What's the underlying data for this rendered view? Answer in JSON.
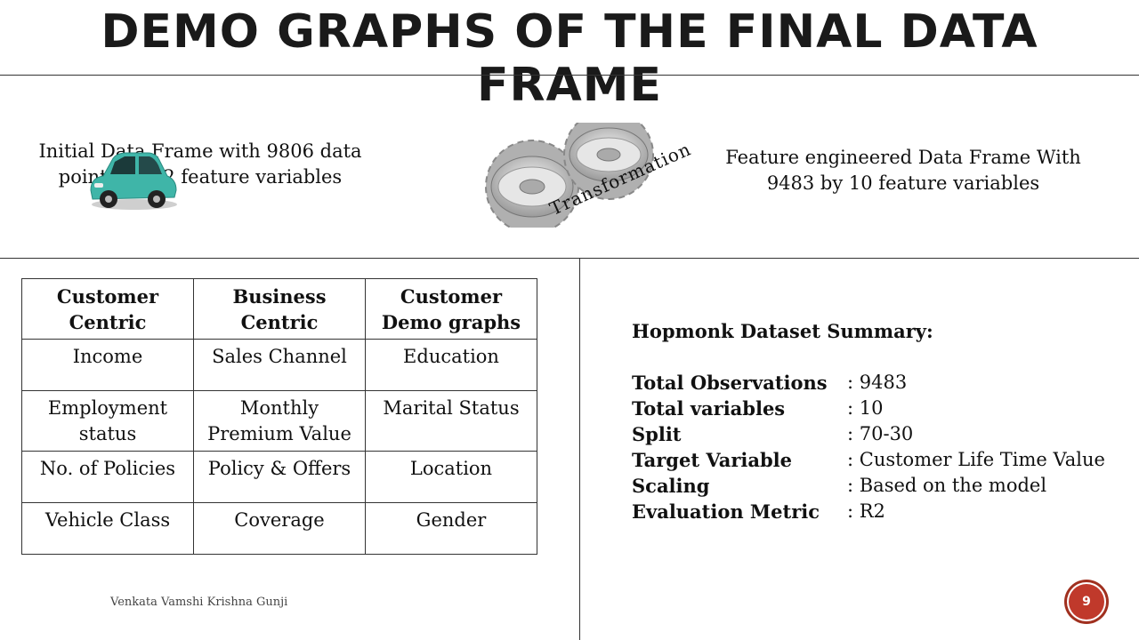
{
  "slide": {
    "title": "DEMO GRAPHS OF THE FINAL DATA FRAME",
    "initial_text_line1": "Initial Data Frame with 9806 data",
    "initial_text_line2": "points by 22 feature variables",
    "transformation_label": "Transformation",
    "feature_text_line1": "Feature engineered Data Frame With",
    "feature_text_line2": "9483 by 10 feature variables",
    "author": "Venkata Vamshi Krishna Gunji",
    "page_number": "9"
  },
  "icons": {
    "car": "teal-toy-car-icon",
    "gears": "gears-icon"
  },
  "colors": {
    "badge": "#c0392b",
    "car": "#3fb5a8"
  },
  "table": {
    "headers": [
      [
        "Customer",
        "Centric"
      ],
      [
        "Business",
        "Centric"
      ],
      [
        "Customer",
        "Demo graphs"
      ]
    ],
    "rows": [
      [
        [
          "Income"
        ],
        [
          "Sales Channel"
        ],
        [
          "Education"
        ]
      ],
      [
        [
          "Employment",
          "status"
        ],
        [
          "Monthly",
          "Premium Value"
        ],
        [
          "Marital Status"
        ]
      ],
      [
        [
          "No. of Policies"
        ],
        [
          "Policy & Offers"
        ],
        [
          "Location"
        ]
      ],
      [
        [
          "Vehicle Class"
        ],
        [
          "Coverage"
        ],
        [
          "Gender"
        ]
      ]
    ]
  },
  "summary": {
    "heading": "Hopmonk Dataset Summary:",
    "items": [
      {
        "key": "Total Observations",
        "value": ": 9483"
      },
      {
        "key": "Total variables",
        "value": ": 10"
      },
      {
        "key": "Split",
        "value": ": 70-30"
      },
      {
        "key": "Target Variable",
        "value": ": Customer Life Time Value"
      },
      {
        "key": "Scaling",
        "value": ": Based on the model"
      },
      {
        "key": "Evaluation Metric",
        "value": ": R2"
      }
    ]
  }
}
